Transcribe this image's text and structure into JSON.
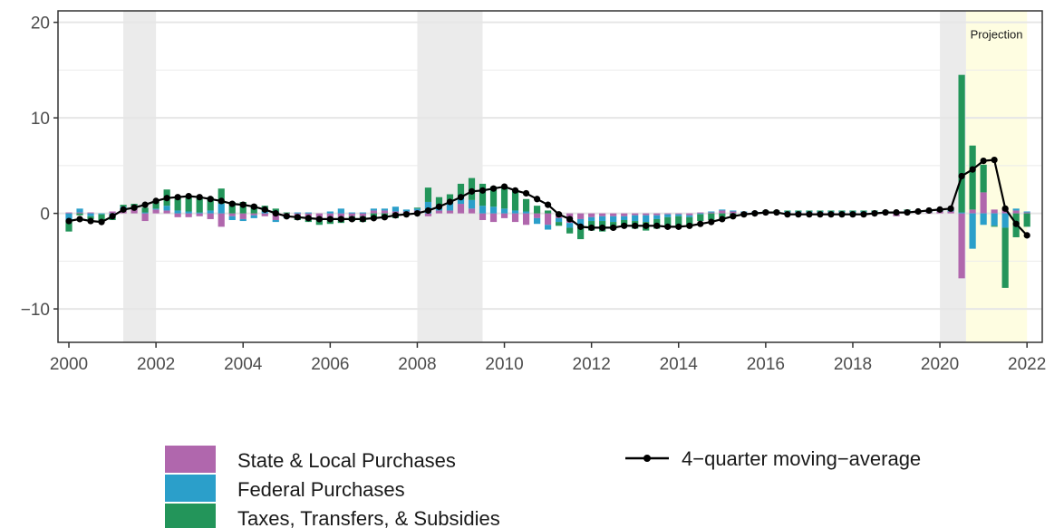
{
  "chart_data": {
    "type": "bar",
    "title": "",
    "xlabel": "",
    "ylabel": "",
    "xlim": [
      1999.75,
      2022.35
    ],
    "ylim": [
      -13.5,
      21.2
    ],
    "x_ticks": [
      2000,
      2002,
      2004,
      2006,
      2008,
      2010,
      2012,
      2014,
      2016,
      2018,
      2020,
      2022
    ],
    "x_tick_labels": [
      "2000",
      "2002",
      "2004",
      "2006",
      "2008",
      "2010",
      "2012",
      "2014",
      "2016",
      "2018",
      "2020",
      "2022"
    ],
    "y_ticks": [
      -10,
      0,
      10,
      20
    ],
    "y_tick_labels": [
      "−10",
      "0",
      "10",
      "20"
    ],
    "grid": true,
    "legend_position": "bottom",
    "annotation": "Projection",
    "recession_shading": [
      [
        2001.25,
        2002.0
      ],
      [
        2008.0,
        2009.5
      ],
      [
        2020.0,
        2020.6
      ]
    ],
    "projection_shading": [
      2020.6,
      2022.0
    ],
    "colors": {
      "state_local": "#b067ad",
      "federal": "#2b9fca",
      "taxes": "#23955a",
      "line": "#000000",
      "recession": "#ebebeb",
      "projection": "#fefde1"
    },
    "x": [
      2000.0,
      2000.25,
      2000.5,
      2000.75,
      2001.0,
      2001.25,
      2001.5,
      2001.75,
      2002.0,
      2002.25,
      2002.5,
      2002.75,
      2003.0,
      2003.25,
      2003.5,
      2003.75,
      2004.0,
      2004.25,
      2004.5,
      2004.75,
      2005.0,
      2005.25,
      2005.5,
      2005.75,
      2006.0,
      2006.25,
      2006.5,
      2006.75,
      2007.0,
      2007.25,
      2007.5,
      2007.75,
      2008.0,
      2008.25,
      2008.5,
      2008.75,
      2009.0,
      2009.25,
      2009.5,
      2009.75,
      2010.0,
      2010.25,
      2010.5,
      2010.75,
      2011.0,
      2011.25,
      2011.5,
      2011.75,
      2012.0,
      2012.25,
      2012.5,
      2012.75,
      2013.0,
      2013.25,
      2013.5,
      2013.75,
      2014.0,
      2014.25,
      2014.5,
      2014.75,
      2015.0,
      2015.25,
      2015.5,
      2015.75,
      2016.0,
      2016.25,
      2016.5,
      2016.75,
      2017.0,
      2017.25,
      2017.5,
      2017.75,
      2018.0,
      2018.25,
      2018.5,
      2018.75,
      2019.0,
      2019.25,
      2019.5,
      2019.75,
      2020.0,
      2020.25,
      2020.5,
      2020.75,
      2021.0,
      2021.25,
      2021.5,
      2021.75,
      2022.0
    ],
    "series": [
      {
        "name": "State & Local Purchases",
        "type": "bar",
        "values": [
          0.1,
          0.1,
          0.1,
          0.0,
          0.2,
          0.4,
          0.5,
          -0.8,
          0.4,
          0.3,
          -0.4,
          -0.4,
          -0.3,
          -0.6,
          -1.4,
          -0.3,
          -0.6,
          -0.2,
          -0.3,
          -0.7,
          -0.3,
          -0.3,
          -0.4,
          -0.5,
          -0.5,
          -0.4,
          -0.3,
          -0.3,
          0.3,
          0.3,
          0.2,
          0.2,
          0.3,
          -0.3,
          0.3,
          0.3,
          1.0,
          0.5,
          -0.7,
          -0.9,
          -0.5,
          -0.9,
          -1.2,
          -0.5,
          -1.2,
          -0.5,
          -1.0,
          -0.6,
          -0.4,
          -0.3,
          -0.3,
          -0.3,
          -0.2,
          -0.2,
          -0.2,
          -0.1,
          -0.1,
          -0.2,
          0.1,
          0.1,
          0.3,
          0.2,
          0.1,
          0.1,
          0.1,
          0.1,
          0.1,
          0.1,
          0.1,
          0.1,
          0.1,
          0.1,
          0.1,
          0.1,
          0.1,
          0.1,
          -0.3,
          0.2,
          0.1,
          0.1,
          0.2,
          0.2,
          -6.8,
          0.4,
          2.2,
          0.4,
          0.5,
          0.3,
          0.1
        ]
      },
      {
        "name": "Federal Purchases",
        "type": "bar",
        "values": [
          -0.7,
          0.4,
          -0.3,
          -0.1,
          -0.2,
          0.3,
          0.2,
          0.1,
          0.1,
          0.5,
          0.3,
          0.2,
          0.1,
          0.3,
          1.0,
          -0.4,
          -0.2,
          -0.3,
          0.2,
          -0.2,
          -0.2,
          0.1,
          0.1,
          -0.2,
          0.2,
          0.5,
          0.1,
          0.1,
          0.2,
          0.2,
          0.5,
          0.2,
          0.2,
          1.2,
          0.6,
          0.8,
          0.8,
          0.9,
          0.8,
          0.7,
          0.5,
          0.3,
          0.2,
          -0.6,
          -0.5,
          -0.4,
          -0.5,
          -0.8,
          -0.4,
          -0.5,
          -0.6,
          -0.4,
          -0.6,
          -0.7,
          -0.4,
          -0.3,
          -0.2,
          -0.2,
          -0.1,
          0.1,
          0.1,
          0.1,
          0.1,
          0.1,
          0.1,
          0.1,
          0.1,
          0.1,
          0.1,
          0.1,
          0.1,
          0.1,
          0.1,
          0.1,
          0.1,
          0.1,
          0.1,
          0.1,
          0.1,
          0.1,
          0.1,
          0.1,
          0.1,
          -3.7,
          -1.2,
          -1.3,
          -1.5,
          0.2,
          0.1
        ]
      },
      {
        "name": "Taxes, Transfers, & Subsidies",
        "type": "bar",
        "values": [
          -1.2,
          -0.2,
          -0.3,
          -0.7,
          -0.5,
          0.2,
          0.3,
          0.5,
          0.8,
          1.7,
          1.3,
          1.6,
          1.5,
          1.4,
          1.6,
          1.2,
          1.2,
          0.9,
          0.6,
          0.5,
          0.1,
          -0.4,
          -0.5,
          -0.5,
          -0.6,
          -0.6,
          -0.5,
          -0.6,
          -0.5,
          -0.5,
          -0.5,
          -0.2,
          0.1,
          1.5,
          0.8,
          0.9,
          1.3,
          2.3,
          2.3,
          2.1,
          2.3,
          2.0,
          1.3,
          0.8,
          0.3,
          -0.4,
          -0.6,
          -1.3,
          -1.0,
          -1.1,
          -0.8,
          -0.7,
          -0.8,
          -0.9,
          -1.0,
          -1.1,
          -1.1,
          -1.0,
          -0.7,
          -0.7,
          -0.4,
          -0.2,
          -0.1,
          -0.1,
          0.1,
          0.1,
          0.1,
          0.1,
          0.1,
          0.1,
          0.1,
          0.1,
          0.1,
          0.1,
          0.1,
          0.1,
          0.1,
          0.1,
          0.1,
          0.1,
          0.1,
          0.1,
          14.4,
          6.7,
          2.9,
          -0.1,
          -6.3,
          -2.5,
          -1.4
        ]
      },
      {
        "name": "4−quarter moving−average",
        "type": "line",
        "values": [
          -0.8,
          -0.6,
          -0.8,
          -0.9,
          -0.3,
          0.4,
          0.6,
          0.9,
          1.3,
          1.6,
          1.7,
          1.8,
          1.7,
          1.5,
          1.3,
          1.0,
          0.9,
          0.7,
          0.4,
          0.0,
          -0.3,
          -0.4,
          -0.5,
          -0.6,
          -0.6,
          -0.6,
          -0.6,
          -0.6,
          -0.5,
          -0.4,
          -0.2,
          -0.1,
          0.0,
          0.3,
          0.7,
          1.2,
          1.7,
          2.3,
          2.4,
          2.6,
          2.8,
          2.4,
          2.1,
          1.5,
          0.9,
          -0.1,
          -0.6,
          -1.4,
          -1.5,
          -1.5,
          -1.5,
          -1.3,
          -1.3,
          -1.3,
          -1.3,
          -1.4,
          -1.4,
          -1.3,
          -1.1,
          -0.9,
          -0.6,
          -0.3,
          -0.1,
          0.0,
          0.1,
          0.1,
          -0.1,
          -0.1,
          -0.1,
          -0.1,
          -0.1,
          -0.1,
          -0.1,
          -0.1,
          0.0,
          0.1,
          0.1,
          0.1,
          0.2,
          0.3,
          0.4,
          0.5,
          3.9,
          4.6,
          5.5,
          5.6,
          0.5,
          -1.1,
          -2.3
        ]
      }
    ],
    "legend": [
      {
        "label": "State & Local Purchases",
        "color": "#b067ad",
        "kind": "box"
      },
      {
        "label": "Federal Purchases",
        "color": "#2b9fca",
        "kind": "box"
      },
      {
        "label": "Taxes, Transfers, & Subsidies",
        "color": "#23955a",
        "kind": "box"
      },
      {
        "label": "4−quarter moving−average",
        "color": "#000000",
        "kind": "line"
      }
    ]
  }
}
